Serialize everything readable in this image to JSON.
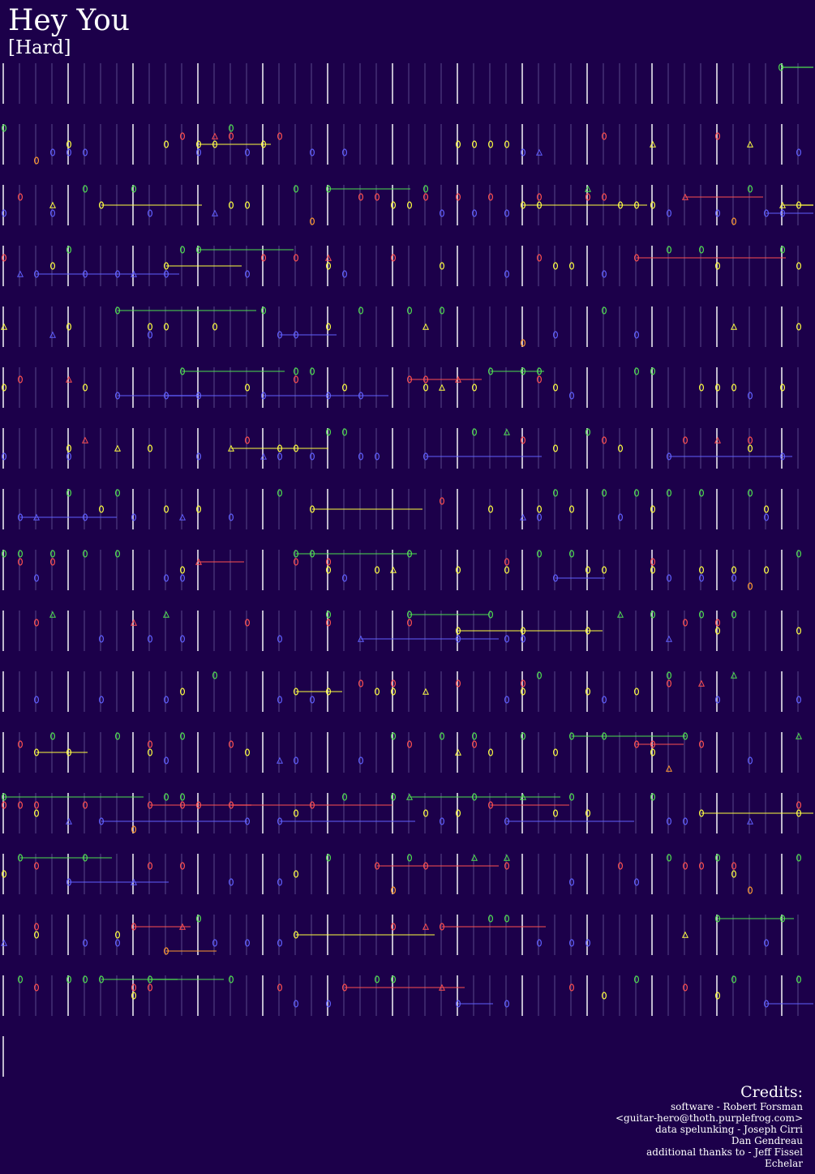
{
  "song": {
    "title": "Hey You",
    "difficulty": "[Hard]"
  },
  "colors": {
    "background": "#1c004a",
    "green": "#4fe04f",
    "red": "#ff5050",
    "yellow": "#ffff40",
    "blue": "#6060ff",
    "orange": "#ff9a30",
    "beat_line": "#a9a6dc",
    "measure_line": "#ffffff"
  },
  "credits": {
    "heading": "Credits:",
    "lines": [
      "software - Robert Forsman",
      "<guitar-hero@thoth.purplefrog.com>",
      "data spelunking - Joseph Cirri",
      "Dan Gendreau",
      "additional thanks to - Jeff Fissel",
      "Echelar"
    ]
  },
  "chart_data": {
    "type": "guitar-hero-note-chart",
    "rows": 17,
    "fret_order": [
      "green",
      "red",
      "yellow",
      "blue",
      "orange"
    ]
  }
}
